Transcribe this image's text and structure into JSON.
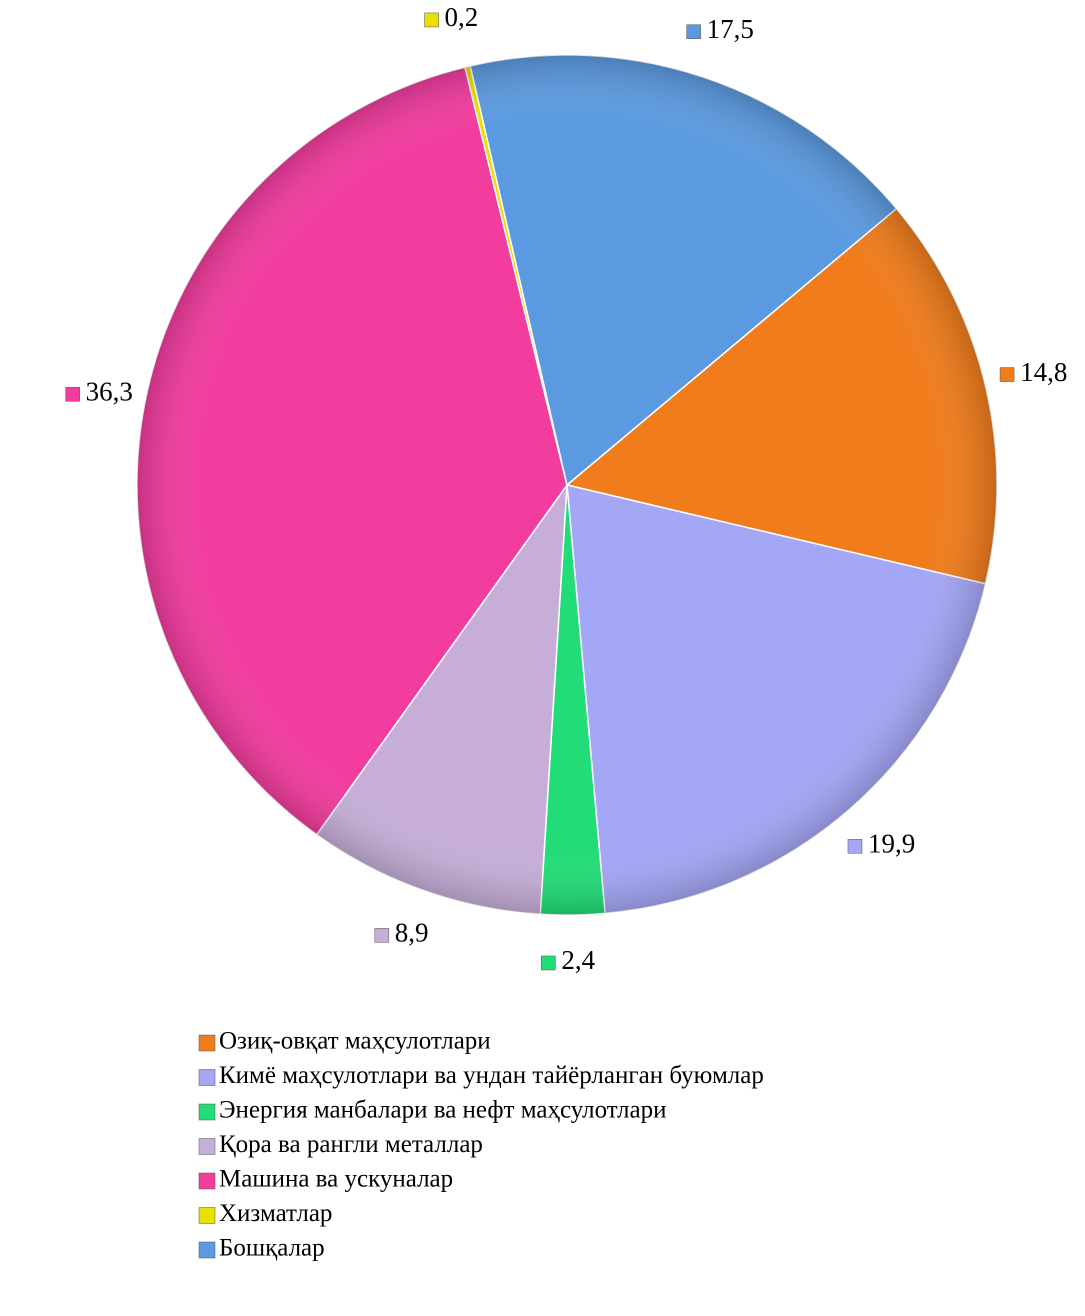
{
  "chart_data": {
    "type": "pie",
    "categories": [
      "Озиқ-овқат маҳсулотлари",
      "Кимё маҳсулотлари ва ундан тайёрланган буюмлар",
      "Энергия манбалари ва нефт маҳсулотлари",
      "Қора ва рангли металлар",
      "Машина ва ускуналар",
      "Хизматлар",
      "Бошқалар"
    ],
    "values": [
      14.8,
      19.9,
      2.4,
      8.9,
      36.3,
      0.2,
      17.5
    ],
    "value_labels": [
      "14,8",
      "19,9",
      "2,4",
      "8,9",
      "36,3",
      "0,2",
      "17,5"
    ],
    "colors": [
      "#f07c1c",
      "#a4a6f6",
      "#22dd77",
      "#c6aed8",
      "#f23c9e",
      "#e8e000",
      "#5b9ae0"
    ],
    "legend": "bottom"
  }
}
